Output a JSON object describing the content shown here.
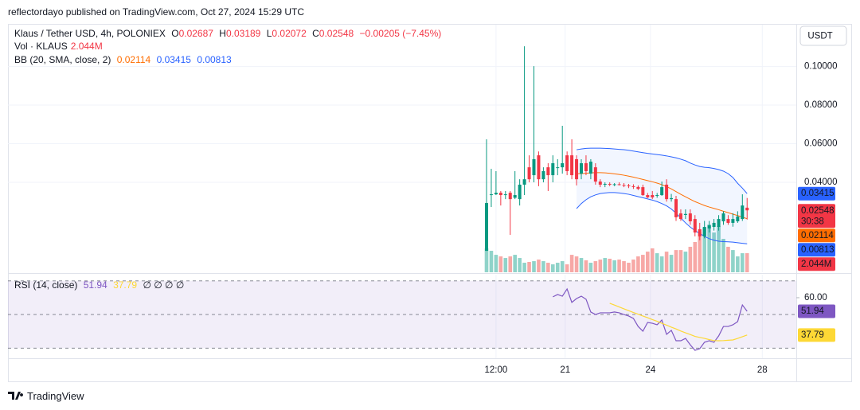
{
  "page": {
    "published": "reflectordayo published on TradingView.com, Oct 27, 2024 15:29 UTC",
    "currency": "USDT",
    "brand": "TradingView"
  },
  "chart_data": [
    {
      "type": "candlestick",
      "title": "Klaus / Tether USD, 4h, POLONIEX",
      "ohlc_labels": [
        "O",
        "H",
        "L",
        "C"
      ],
      "change": "−0.00205 (−7.45%)",
      "countdown": "30:38",
      "up_color": "#089981",
      "down_color": "#f23645",
      "categories": [
        null,
        null,
        null,
        null,
        null,
        null,
        null,
        null,
        null,
        null,
        null,
        null,
        null,
        null,
        null,
        null,
        null,
        null,
        null,
        null,
        null,
        null,
        null,
        null,
        null,
        null,
        null,
        null,
        null,
        null,
        null,
        null,
        null,
        null,
        null,
        null,
        null,
        null,
        null,
        null,
        null,
        null,
        null,
        null,
        null,
        null,
        null,
        null,
        null,
        null,
        null,
        null,
        null,
        null,
        null,
        null
      ],
      "open": [
        0.0045,
        0.0334,
        0.0338,
        0.0346,
        0.0334,
        0.0346,
        0.032,
        0.0313,
        0.0388,
        0.0478,
        0.0437,
        0.054,
        0.0416,
        0.0478,
        0.0437,
        0.0478,
        0.0478,
        0.054,
        0.054,
        0.052,
        0.0445,
        0.0499,
        0.0445,
        0.0478,
        0.0404,
        0.0388,
        0.0392,
        0.0388,
        0.039,
        0.0386,
        0.0384,
        0.038,
        0.0376,
        0.0375,
        0.0334,
        0.0334,
        0.033,
        0.0334,
        0.0388,
        0.0313,
        0.0313,
        0.0239,
        0.0231,
        0.0239,
        0.021,
        0.0157,
        0.012,
        0.0161,
        0.0169,
        0.0169,
        0.0198,
        0.021,
        0.019,
        0.0198,
        0.021,
        0.02687
      ],
      "high": [
        0.0623,
        0.047,
        0.0458,
        0.0355,
        0.0355,
        0.0355,
        0.0458,
        0.0416,
        0.1105,
        0.054,
        0.1002,
        0.056,
        0.0478,
        0.0499,
        0.054,
        0.052,
        0.0693,
        0.056,
        0.0623,
        0.054,
        0.052,
        0.054,
        0.052,
        0.0499,
        0.0416,
        0.04,
        0.04,
        0.0396,
        0.04,
        0.0396,
        0.0392,
        0.039,
        0.0384,
        0.0388,
        0.0345,
        0.0355,
        0.0345,
        0.0404,
        0.0416,
        0.034,
        0.033,
        0.026,
        0.026,
        0.026,
        0.023,
        0.019,
        0.02,
        0.02,
        0.021,
        0.023,
        0.025,
        0.023,
        0.024,
        0.025,
        0.0338,
        0.03189
      ],
      "low": [
        0.0045,
        0.0272,
        0.0334,
        0.028,
        0.0313,
        0.0128,
        0.0313,
        0.028,
        0.0334,
        0.04,
        0.04,
        0.038,
        0.04,
        0.0355,
        0.04,
        0.0437,
        0.0445,
        0.0437,
        0.0416,
        0.0384,
        0.0416,
        0.0437,
        0.0416,
        0.0388,
        0.0375,
        0.0375,
        0.038,
        0.038,
        0.0384,
        0.0375,
        0.037,
        0.0366,
        0.036,
        0.033,
        0.0318,
        0.0313,
        0.032,
        0.033,
        0.03,
        0.03,
        0.02,
        0.02,
        0.021,
        0.018,
        0.012,
        0.01,
        0.011,
        0.014,
        0.015,
        0.015,
        0.018,
        0.018,
        0.017,
        0.019,
        0.02,
        0.02072
      ],
      "close": [
        0.0293,
        0.0338,
        0.0346,
        0.0334,
        0.0338,
        0.0313,
        0.0334,
        0.0388,
        0.0416,
        0.0416,
        0.052,
        0.0416,
        0.0458,
        0.0437,
        0.0499,
        0.0478,
        0.0499,
        0.0458,
        0.0437,
        0.0416,
        0.0499,
        0.0458,
        0.0507,
        0.0404,
        0.0388,
        0.0392,
        0.0388,
        0.039,
        0.0386,
        0.0384,
        0.038,
        0.0376,
        0.0366,
        0.0334,
        0.0322,
        0.0322,
        0.0334,
        0.0375,
        0.0313,
        0.0318,
        0.0219,
        0.021,
        0.0236,
        0.0198,
        0.014,
        0.012,
        0.0169,
        0.0177,
        0.019,
        0.021,
        0.0239,
        0.019,
        0.021,
        0.0223,
        0.028,
        0.02548
      ],
      "ylim": [
        -0.0066,
        0.1221
      ],
      "yticks": [
        {
          "value": 0.1,
          "label": "0.10000"
        },
        {
          "value": 0.08,
          "label": "0.08000"
        },
        {
          "value": 0.06,
          "label": "0.06000"
        },
        {
          "value": 0.04,
          "label": "0.04000"
        }
      ],
      "xticks": [
        {
          "value": 2,
          "label": "12:00"
        },
        {
          "value": 16.6,
          "label": "21"
        },
        {
          "value": 34.6,
          "label": "24"
        },
        {
          "value": 58.2,
          "label": "28"
        }
      ],
      "grid": true,
      "volume": {
        "name": "Vol · KLAUS",
        "ylim": [
          0,
          26.6
        ],
        "up_color": "#8fd3c9",
        "down_color": "#f7a8a6",
        "values": [
          2.56,
          2.3,
          1.87,
          1.7,
          1.53,
          1.7,
          1.87,
          1.53,
          1.02,
          1.11,
          1.19,
          1.36,
          1.19,
          1.02,
          0.85,
          1.02,
          1.19,
          0.85,
          1.87,
          1.7,
          1.53,
          1.28,
          1.02,
          1.19,
          1.36,
          1.53,
          1.45,
          1.28,
          1.36,
          1.19,
          1.02,
          1.36,
          1.7,
          1.87,
          2.21,
          2.56,
          2.04,
          1.7,
          2.21,
          1.87,
          2.38,
          2.38,
          2.21,
          2.73,
          3.24,
          4.26,
          4.77,
          5.11,
          4.26,
          4.94,
          3.58,
          2.73,
          2.38,
          1.7,
          2.04,
          2.044
        ],
        "value_labels": [
          null,
          null,
          null,
          null,
          null,
          null,
          null,
          null,
          null,
          null,
          null,
          null,
          null,
          null,
          null,
          null,
          null,
          null,
          null,
          null,
          null,
          null,
          null,
          null,
          null,
          null,
          null,
          null,
          null,
          null,
          null,
          null,
          null,
          null,
          null,
          null,
          null,
          null,
          null,
          null,
          null,
          null,
          null,
          null,
          null,
          null,
          null,
          null,
          null,
          null,
          null,
          null,
          null,
          null,
          null,
          "2.044M"
        ]
      },
      "bb": {
        "name": "BB (20, SMA, close, 2)",
        "fill": "rgba(41,98,255,0.06)",
        "basis": {
          "color": "#ff6d00",
          "values": [
            null,
            null,
            null,
            null,
            null,
            null,
            null,
            null,
            null,
            null,
            null,
            null,
            null,
            null,
            null,
            null,
            null,
            null,
            null,
            0.0445,
            0.0445,
            0.0447,
            0.0449,
            0.045,
            0.045,
            0.0449,
            0.0447,
            0.0444,
            0.0441,
            0.0437,
            0.0432,
            0.0427,
            0.0421,
            0.0415,
            0.0409,
            0.0403,
            0.0396,
            0.0388,
            0.0378,
            0.0366,
            0.0352,
            0.0338,
            0.0325,
            0.0312,
            0.03,
            0.029,
            0.028,
            0.0272,
            0.0265,
            0.0258,
            0.025,
            0.0243,
            0.0235,
            0.0228,
            0.022,
            0.02114
          ]
        },
        "upper": {
          "color": "#2962ff",
          "values": [
            null,
            null,
            null,
            null,
            null,
            null,
            null,
            null,
            null,
            null,
            null,
            null,
            null,
            null,
            null,
            null,
            null,
            null,
            null,
            0.0569,
            0.0573,
            0.0576,
            0.0577,
            0.0577,
            0.0577,
            0.0576,
            0.0575,
            0.0573,
            0.0571,
            0.0569,
            0.0566,
            0.0562,
            0.0558,
            0.0554,
            0.055,
            0.0547,
            0.0544,
            0.0541,
            0.0537,
            0.0532,
            0.0527,
            0.052,
            0.0512,
            0.05,
            0.049,
            0.0482,
            0.0478,
            0.0476,
            0.0472,
            0.0466,
            0.0458,
            0.0445,
            0.0425,
            0.0395,
            0.037,
            0.03415
          ]
        },
        "lower": {
          "color": "#2962ff",
          "values": [
            null,
            null,
            null,
            null,
            null,
            null,
            null,
            null,
            null,
            null,
            null,
            null,
            null,
            null,
            null,
            null,
            null,
            null,
            null,
            0.0264,
            0.029,
            0.031,
            0.0325,
            0.0335,
            0.0342,
            0.0345,
            0.0347,
            0.0347,
            0.0345,
            0.0342,
            0.0338,
            0.0332,
            0.0326,
            0.032,
            0.0314,
            0.0308,
            0.03,
            0.029,
            0.0278,
            0.0262,
            0.024,
            0.0215,
            0.019,
            0.0168,
            0.015,
            0.0135,
            0.012,
            0.0108,
            0.01,
            0.0095,
            0.0093,
            0.0092,
            0.009,
            0.0087,
            0.0084,
            0.00813
          ]
        }
      }
    },
    {
      "type": "line",
      "title": "RSI (14, close)",
      "extra": "∅ ∅ ∅ ∅",
      "ylim": [
        24,
        73.7
      ],
      "yticks": [
        {
          "value": 60,
          "label": "60.00"
        }
      ],
      "bands": [
        70,
        50,
        30
      ],
      "band_color": "rgba(126,87,194,0.1)",
      "series": [
        {
          "color": "#7e57c2",
          "values": [
            null,
            null,
            null,
            null,
            null,
            null,
            null,
            null,
            null,
            null,
            null,
            null,
            null,
            null,
            60.5,
            61.9,
            60.9,
            65.2,
            57.2,
            59.5,
            60.9,
            59.1,
            51.5,
            50.0,
            51.0,
            51.0,
            51.0,
            51.5,
            51.0,
            50.0,
            49.1,
            47.7,
            42.9,
            40.1,
            45.3,
            44.8,
            43.9,
            46.7,
            38.2,
            40.6,
            34.4,
            34.4,
            35.8,
            32.0,
            28.7,
            29.7,
            33.5,
            34.4,
            33.5,
            37.3,
            42.9,
            42.9,
            43.9,
            45.8,
            55.7,
            51.94
          ]
        },
        {
          "color": "#fdd835",
          "values": [
            null,
            null,
            null,
            null,
            null,
            null,
            null,
            null,
            null,
            null,
            null,
            null,
            null,
            null,
            null,
            null,
            null,
            null,
            null,
            null,
            null,
            null,
            null,
            null,
            null,
            null,
            56.7,
            55.6,
            54.5,
            53.4,
            52.3,
            51.2,
            50.2,
            49.1,
            48.1,
            47.0,
            46.0,
            44.8,
            43.7,
            42.5,
            41.4,
            40.2,
            39.1,
            38.1,
            37.0,
            36.4,
            35.8,
            35.1,
            34.5,
            34.4,
            34.5,
            34.7,
            34.9,
            35.8,
            36.8,
            37.79
          ]
        }
      ]
    }
  ]
}
